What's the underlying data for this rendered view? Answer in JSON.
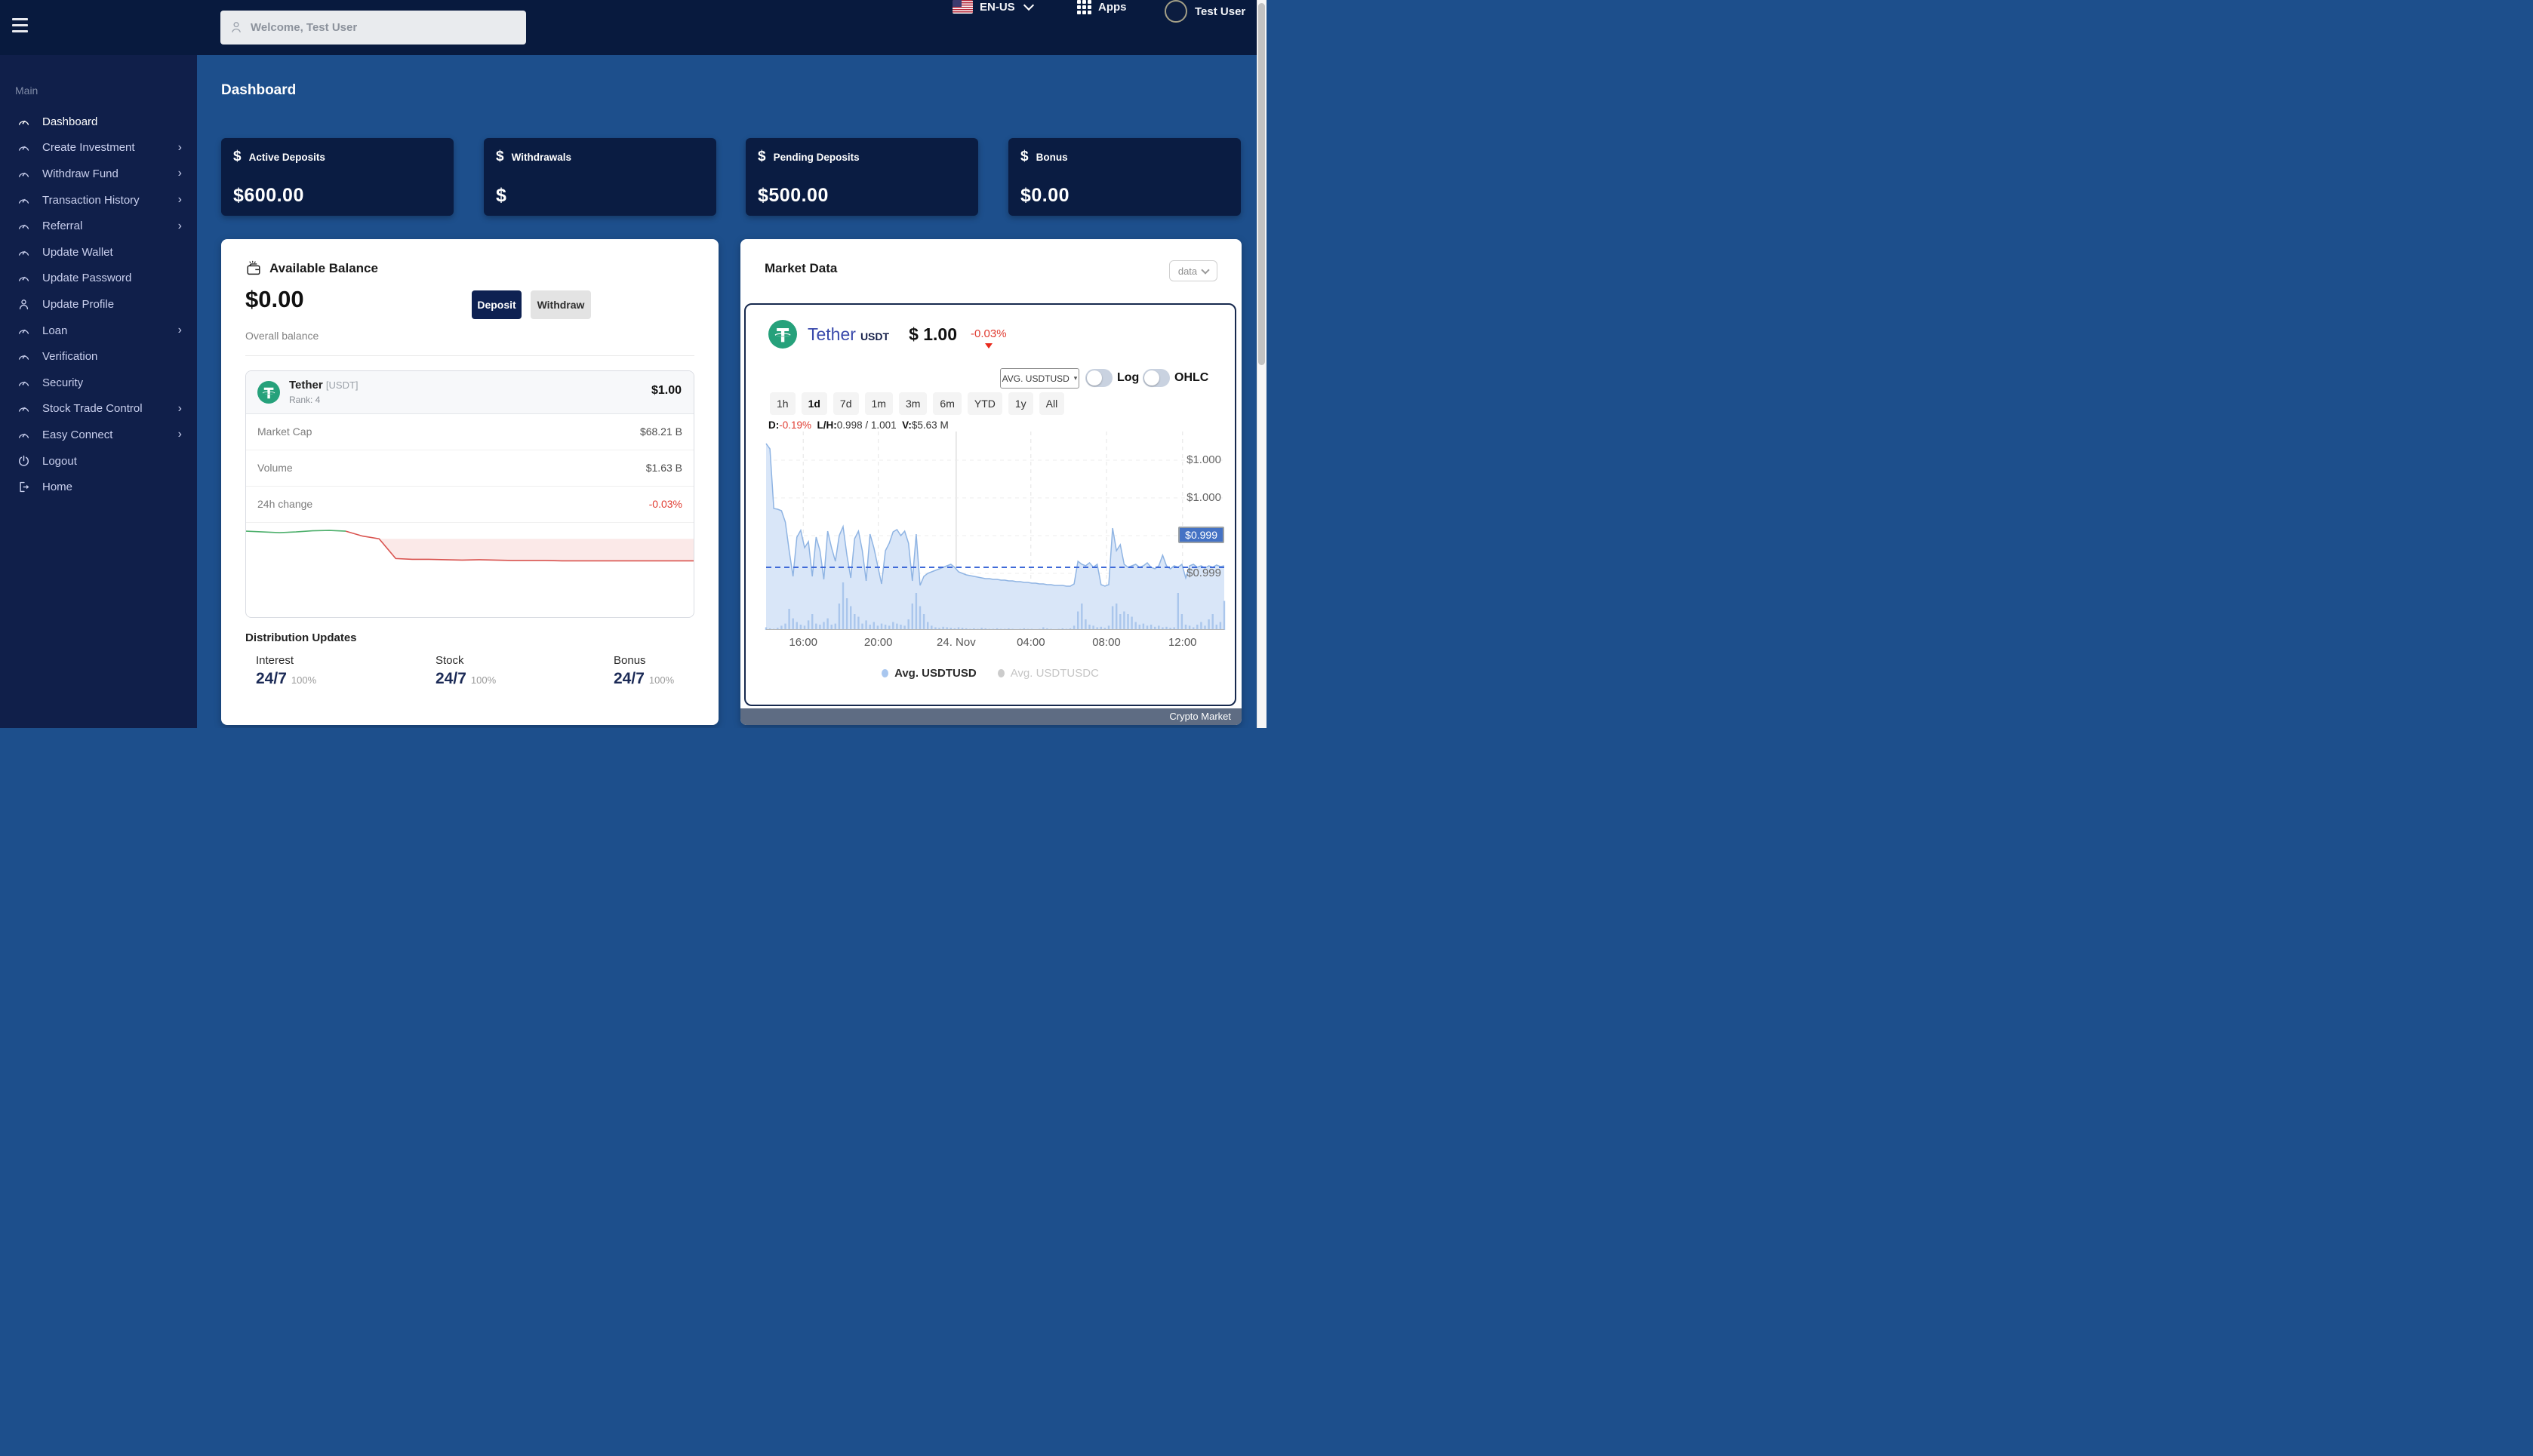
{
  "header": {
    "search_placeholder": "Welcome, Test User",
    "language": "EN-US",
    "apps_label": "Apps",
    "user_name": "Test User"
  },
  "sidebar": {
    "section_label": "Main",
    "items": [
      {
        "label": "Dashboard",
        "icon": "gauge",
        "chevron": false,
        "active": true
      },
      {
        "label": "Create Investment",
        "icon": "gauge",
        "chevron": true
      },
      {
        "label": "Withdraw Fund",
        "icon": "gauge",
        "chevron": true
      },
      {
        "label": "Transaction History",
        "icon": "gauge",
        "chevron": true
      },
      {
        "label": "Referral",
        "icon": "gauge",
        "chevron": true
      },
      {
        "label": "Update Wallet",
        "icon": "gauge",
        "chevron": false
      },
      {
        "label": "Update Password",
        "icon": "gauge",
        "chevron": false
      },
      {
        "label": "Update Profile",
        "icon": "person",
        "chevron": false
      },
      {
        "label": "Loan",
        "icon": "gauge",
        "chevron": true
      },
      {
        "label": "Verification",
        "icon": "gauge",
        "chevron": false
      },
      {
        "label": "Security",
        "icon": "gauge",
        "chevron": false
      },
      {
        "label": "Stock Trade Control",
        "icon": "gauge",
        "chevron": true
      },
      {
        "label": "Easy Connect",
        "icon": "gauge",
        "chevron": true
      },
      {
        "label": "Logout",
        "icon": "power",
        "chevron": false
      },
      {
        "label": "Home",
        "icon": "exit",
        "chevron": false
      }
    ]
  },
  "page": {
    "title": "Dashboard"
  },
  "stat_cards": [
    {
      "label": "Active Deposits",
      "value": "$600.00"
    },
    {
      "label": "Withdrawals",
      "value": "$"
    },
    {
      "label": "Pending Deposits",
      "value": "$500.00"
    },
    {
      "label": "Bonus",
      "value": "$0.00"
    }
  ],
  "balance_card": {
    "title": "Available Balance",
    "amount": "$0.00",
    "subtitle": "Overall balance",
    "deposit_label": "Deposit",
    "withdraw_label": "Withdraw",
    "asset": {
      "name": "Tether",
      "symbol_bracket": "[USDT]",
      "rank": "Rank: 4",
      "price": "$1.00",
      "rows": [
        {
          "label": "Market Cap",
          "value": "$68.21 B"
        },
        {
          "label": "Volume",
          "value": "$1.63 B"
        },
        {
          "label": "24h change",
          "value": "-0.03%"
        }
      ]
    },
    "distribution": {
      "title": "Distribution Updates",
      "items": [
        {
          "label": "Interest",
          "value": "24/7",
          "sub": "100%"
        },
        {
          "label": "Stock",
          "value": "24/7",
          "sub": "100%"
        },
        {
          "label": "Bonus",
          "value": "24/7",
          "sub": "100%"
        }
      ]
    }
  },
  "market_card": {
    "title": "Market Data",
    "dropdown_label": "data",
    "coin": {
      "name": "Tether",
      "symbol": "USDT",
      "price": "$ 1.00",
      "change": "-0.03%"
    },
    "controls": {
      "avg_select": "AVG. USDTUSD",
      "log_label": "Log",
      "ohlc_label": "OHLC"
    },
    "ranges": [
      "1h",
      "1d",
      "7d",
      "1m",
      "3m",
      "6m",
      "YTD",
      "1y",
      "All"
    ],
    "active_range": "1d",
    "stats": {
      "d_label": "D:",
      "d_value": "-0.19%",
      "lh_label": "L/H:",
      "lh_value": "0.998 / 1.001",
      "v_label": "V:",
      "v_value": "$5.63 M"
    },
    "legend": [
      {
        "label": "Avg. USDTUSD",
        "color": "#a9c7ef",
        "active": true
      },
      {
        "label": "Avg. USDTUSDC",
        "color": "#cccccc",
        "active": false
      }
    ],
    "footer_label": "Crypto Market"
  },
  "chart_data": {
    "type": "area",
    "title": "USDT/USD average price, 1d range",
    "ylim": [
      0.99825,
      1.00088
    ],
    "x_ticks": [
      {
        "label": "16:00",
        "pos": 0.081
      },
      {
        "label": "20:00",
        "pos": 0.245
      },
      {
        "label": "24. Nov",
        "pos": 0.415,
        "solid": true
      },
      {
        "label": "04:00",
        "pos": 0.578
      },
      {
        "label": "08:00",
        "pos": 0.743
      },
      {
        "label": "12:00",
        "pos": 0.909
      }
    ],
    "y_gridlines": [
      {
        "value": 1.0005,
        "label": "$1.000"
      },
      {
        "value": 1.0,
        "label": "$1.000"
      },
      {
        "value": 0.9995,
        "label": "$0.999"
      },
      {
        "value": 0.999,
        "label": "$0.999"
      }
    ],
    "current_price": {
      "value": 0.99908,
      "tag_at": 0.9995,
      "label": "$0.999"
    },
    "price": [
      1.00072,
      1.00065,
      0.99986,
      0.99985,
      0.99983,
      0.99968,
      0.9993,
      0.99896,
      0.99948,
      0.99957,
      0.99934,
      0.99942,
      0.99896,
      0.99948,
      0.9993,
      0.99892,
      0.99956,
      0.99934,
      0.99916,
      0.9995,
      0.99962,
      0.99924,
      0.99894,
      0.99946,
      0.99956,
      0.9993,
      0.9989,
      0.99952,
      0.99934,
      0.9991,
      0.99886,
      0.9993,
      0.9994,
      0.99955,
      0.99958,
      0.9995,
      0.99956,
      0.9994,
      0.9989,
      0.99952,
      0.99884,
      0.99896,
      0.999,
      0.99902,
      0.99904,
      0.99906,
      0.99908,
      0.9991,
      0.99912,
      0.99908,
      0.99902,
      0.999,
      0.99898,
      0.99897,
      0.99896,
      0.99895,
      0.99894,
      0.99893,
      0.99893,
      0.99892,
      0.99892,
      0.99891,
      0.99891,
      0.9989,
      0.9989,
      0.99889,
      0.99889,
      0.99888,
      0.99888,
      0.99887,
      0.99887,
      0.99886,
      0.99886,
      0.99885,
      0.99885,
      0.99884,
      0.99884,
      0.99884,
      0.99883,
      0.99883,
      0.99886,
      0.99916,
      0.99912,
      0.9991,
      0.99914,
      0.99908,
      0.99912,
      0.99885,
      0.99883,
      0.99885,
      0.9996,
      0.9993,
      0.99938,
      0.99912,
      0.99908,
      0.9991,
      0.99912,
      0.99908,
      0.9991,
      0.99914,
      0.99908,
      0.99906,
      0.9991,
      0.99924,
      0.9991,
      0.99906,
      0.9991,
      0.99908,
      0.99912,
      0.99894,
      0.9991,
      0.99912,
      0.99908,
      0.9991,
      0.99907,
      0.9991,
      0.99908,
      0.99911,
      0.99909,
      0.9991
    ],
    "volume": [
      0.05,
      0.03,
      0.02,
      0.04,
      0.08,
      0.12,
      0.4,
      0.22,
      0.15,
      0.1,
      0.08,
      0.18,
      0.3,
      0.12,
      0.1,
      0.15,
      0.22,
      0.1,
      0.12,
      0.5,
      0.9,
      0.6,
      0.45,
      0.3,
      0.25,
      0.12,
      0.18,
      0.1,
      0.15,
      0.08,
      0.12,
      0.1,
      0.08,
      0.15,
      0.12,
      0.1,
      0.08,
      0.2,
      0.5,
      0.7,
      0.45,
      0.3,
      0.15,
      0.08,
      0.05,
      0.04,
      0.06,
      0.05,
      0.04,
      0.03,
      0.05,
      0.04,
      0.03,
      0.02,
      0.03,
      0.02,
      0.04,
      0.03,
      0.02,
      0.02,
      0.03,
      0.02,
      0.02,
      0.03,
      0.02,
      0.01,
      0.02,
      0.03,
      0.02,
      0.02,
      0.01,
      0.02,
      0.05,
      0.03,
      0.02,
      0.01,
      0.02,
      0.03,
      0.02,
      0.03,
      0.08,
      0.35,
      0.5,
      0.2,
      0.1,
      0.08,
      0.05,
      0.06,
      0.04,
      0.08,
      0.45,
      0.5,
      0.3,
      0.35,
      0.3,
      0.25,
      0.15,
      0.1,
      0.12,
      0.08,
      0.1,
      0.06,
      0.08,
      0.05,
      0.06,
      0.04,
      0.05,
      0.7,
      0.3,
      0.1,
      0.08,
      0.05,
      0.1,
      0.15,
      0.08,
      0.2,
      0.3,
      0.1,
      0.15,
      0.55
    ],
    "sparkline": {
      "range": [
        0.99885,
        0.99992
      ],
      "green_until": 6,
      "fill_from": 8,
      "values": [
        0.99978,
        0.99976,
        0.99974,
        0.99976,
        0.99979,
        0.9998,
        0.99978,
        0.99965,
        0.99958,
        0.99906,
        0.99904,
        0.99904,
        0.99903,
        0.99902,
        0.99903,
        0.99902,
        0.99901,
        0.99901,
        0.99901,
        0.999,
        0.999,
        0.999,
        0.999,
        0.999,
        0.999,
        0.999,
        0.999,
        0.999
      ]
    }
  },
  "colors": {
    "page_bg": "#1d4f8c",
    "header_bg": "#081a3e",
    "sidebar_bg": "#101f4a",
    "card_navy": "#0a1c42",
    "button_navy": "#0e2152",
    "accent_red": "#e03c31",
    "spark_green": "#4caf6b",
    "spark_red": "#d9534f",
    "spark_fill": "rgba(226,87,76,0.13)",
    "tether_green": "#26a17b",
    "chart_line": "#8fb4e3",
    "chart_fill": "#d9e6f8",
    "chart_volume": "#aac6ec",
    "dashed_line": "#3f6ad8",
    "tag_bg": "#4472c4",
    "footer_bg": "#5e6c83",
    "grid_dash": "#e4e4e4",
    "grid_solid": "#cfcfcf"
  }
}
